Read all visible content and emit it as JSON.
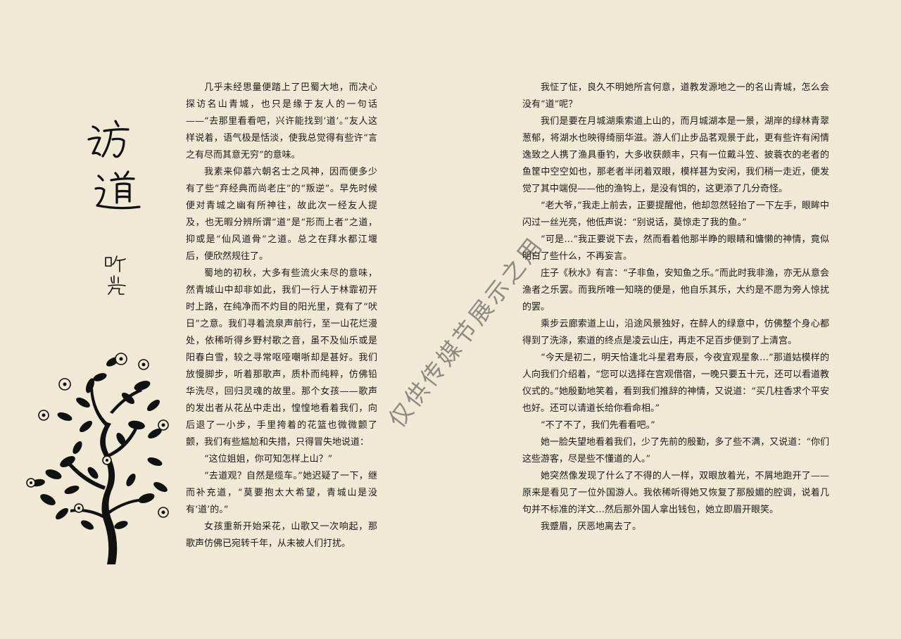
{
  "title": "访道",
  "author": "听岚",
  "watermark": "仅供传媒节展示之用",
  "left_column": [
    "几乎未经思量便踏上了巴蜀大地，而决心探访名山青城，也只是缘于友人的一句话——“去那里看看吧，兴许能找到‘道’。”友人这样说着，语气极是恬淡，使我总觉得有些许“言之有尽而其意无穷”的意味。",
    "我素来仰慕六朝名士之风神，因而便多少有了些“弃经典而尚老庄”的“叛逆”。早先时候便对青城之幽有所神往，故此次一经友人提及，也无暇分辨所谓“道”是“形而上者”之道，抑或是“仙风道骨”之道。总之在拜水都江堰后，便欣然规往了。",
    "蜀地的初秋，大多有些流火未尽的意味，然青城山中却非如此，我们一行人于林霏初开时上路，在纯净而不灼目的阳光里，竟有了“吠日”之意。我们寻着流泉声前行，至一山花烂漫处，依稀听得乡野村歌之音，虽不及仙乐或是阳春白雪，较之寻常呕哑嘲哳却是甚好。我们放慢脚步，听着那歌声，质朴而纯粹，仿佛铅华洗尽，回归灵魂的故里。那个女孩——歌声的发出者从花丛中走出，惶惶地看着我们，向后退了一小步，手里挎着的花篮也微微颤了颤，我们有些尴尬和失措，只得冒失地说道：",
    "“这位姐姐，你可知怎样上山？”",
    "“去道观？自然是缆车。”她迟疑了一下，继而补充道，“莫要抱太大希望，青城山是没有‘道’的。”",
    "女孩重新开始采花，山歌又一次响起，那歌声仿佛已宛转千年，从未被人们打扰。"
  ],
  "right_column": [
    "我怔了怔，良久不明她所言何意，道教发源地之一的名山青城，怎么会没有“道”呢？",
    "我们是要在月城湖乘索道上山的，而月城湖本是一景，湖岸的绿林青翠葱郁，将湖水也映得绮丽华滋。游人们止步品茗观景于此，更有些许有闲情逸致之人携了渔具垂钓，大多收获颇丰，只有一位戴斗笠、披蓑衣的老者的鱼筐中空空如也，那老者半闭着双眼，模样甚为安闲，我们稍一走近，便发觉了其中端倪——他的渔钩上，是没有饵的，这更添了几分奇怪。",
    "“老大爷，”我走上前去，正要提醒他，他却忽然轻抬了一下左手，眼眸中闪过一丝光亮，他低声说：“别说话，莫惊走了我的鱼。”",
    "“可是…”我正要说下去，然而看着他那半睁的眼睛和慵懒的神情，竟似明白了些什么，不再妄言。",
    "庄子《秋水》有言：“子非鱼，安知鱼之乐。”而此时我非渔，亦无从意会渔者之乐罢。而我所唯一知晓的便是，他自乐其乐，大约是不愿为旁人惊扰的罢。",
    "乘步云廊索道上山，沿途风景独好，在醉人的绿意中，仿佛整个身心都得到了洗涤，索道的终点是凌云山庄，再走不足百步便到了上清宫。",
    "“今天是初二，明天恰逢北斗星君寿辰，今夜宜观星象…”那道姑模样的人向我们介绍着，“您可以选择在宫观借宿，一晚只要五十元，还可以看道教仪式的。”她殷勤地笑着，看到我们推辞的神情，又说道：“买几柱香求个平安也好。还可以请道长给你看命相。”",
    "“不了不了，我们先看看吧。”",
    "她一脸失望地看着我们，少了先前的殷勤，多了些不满，又说道：“你们这些游客，尽是些不懂道的人。”",
    "她突然像发现了什么了不得的人一样，双眼放着光，不屑地跑开了——原来是看见了一位外国游人。我依稀听得她又恢复了那殷媚的腔调，说着几句并不标准的洋文…然后那外国人拿出钱包，她立即眉开眼笑。",
    "我蹙眉，厌恶地离去了。"
  ],
  "colors": {
    "background": "#f0e9d6",
    "text": "#1c1a17",
    "ink": "#111111"
  }
}
